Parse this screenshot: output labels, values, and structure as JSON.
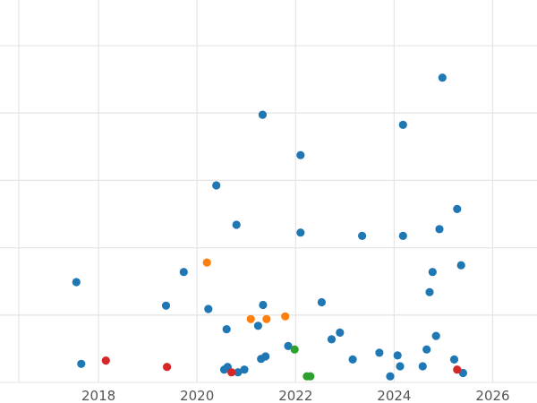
{
  "chart_data": {
    "type": "scatter",
    "title": "",
    "xlabel": "",
    "ylabel": "",
    "xlim": [
      2016.0,
      2026.9
    ],
    "ylim": [
      0,
      1
    ],
    "grid": true,
    "x_ticks": [
      2018,
      2020,
      2022,
      2024,
      2026
    ],
    "x_tick_labels": [
      "2018",
      "2020",
      "2022",
      "2024",
      "2026"
    ],
    "y_gridlines": [
      0.0,
      0.2,
      0.4,
      0.6,
      0.8,
      1.0
    ],
    "colors": {
      "blue": "#1f77b4",
      "orange": "#ff7f0e",
      "green": "#2ca02c",
      "red": "#d62728"
    },
    "series": [
      {
        "color": "#1f77b4",
        "points": [
          [
            2017.55,
            0.298
          ],
          [
            2017.65,
            0.055
          ],
          [
            2019.37,
            0.228
          ],
          [
            2019.73,
            0.328
          ],
          [
            2020.23,
            0.218
          ],
          [
            2020.39,
            0.585
          ],
          [
            2020.55,
            0.038
          ],
          [
            2020.6,
            0.158
          ],
          [
            2020.62,
            0.046
          ],
          [
            2020.8,
            0.468
          ],
          [
            2020.83,
            0.03
          ],
          [
            2020.96,
            0.038
          ],
          [
            2021.24,
            0.168
          ],
          [
            2021.3,
            0.07
          ],
          [
            2021.33,
            0.795
          ],
          [
            2021.34,
            0.23
          ],
          [
            2021.39,
            0.077
          ],
          [
            2021.85,
            0.108
          ],
          [
            2022.1,
            0.675
          ],
          [
            2022.1,
            0.445
          ],
          [
            2022.53,
            0.238
          ],
          [
            2022.73,
            0.128
          ],
          [
            2022.9,
            0.148
          ],
          [
            2023.16,
            0.068
          ],
          [
            2023.35,
            0.435
          ],
          [
            2023.7,
            0.088
          ],
          [
            2023.92,
            0.018
          ],
          [
            2024.07,
            0.08
          ],
          [
            2024.12,
            0.048
          ],
          [
            2024.18,
            0.435
          ],
          [
            2024.18,
            0.765
          ],
          [
            2024.58,
            0.048
          ],
          [
            2024.66,
            0.098
          ],
          [
            2024.72,
            0.268
          ],
          [
            2024.78,
            0.328
          ],
          [
            2024.85,
            0.138
          ],
          [
            2024.92,
            0.455
          ],
          [
            2024.98,
            0.905
          ],
          [
            2025.22,
            0.068
          ],
          [
            2025.28,
            0.515
          ],
          [
            2025.36,
            0.348
          ],
          [
            2025.4,
            0.028
          ]
        ]
      },
      {
        "color": "#ff7f0e",
        "points": [
          [
            2020.2,
            0.356
          ],
          [
            2021.09,
            0.188
          ],
          [
            2021.41,
            0.188
          ],
          [
            2021.79,
            0.196
          ]
        ]
      },
      {
        "color": "#2ca02c",
        "points": [
          [
            2021.98,
            0.098
          ],
          [
            2022.23,
            0.018
          ],
          [
            2022.3,
            0.018
          ]
        ]
      },
      {
        "color": "#d62728",
        "points": [
          [
            2018.15,
            0.065
          ],
          [
            2019.39,
            0.046
          ],
          [
            2020.7,
            0.03
          ],
          [
            2025.28,
            0.038
          ]
        ]
      }
    ]
  }
}
